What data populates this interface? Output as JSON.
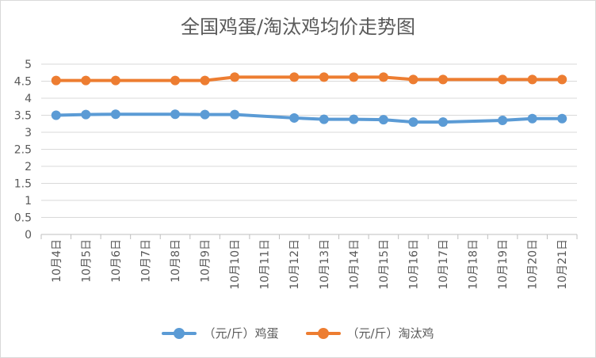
{
  "chart_data": {
    "type": "line",
    "title": "全国鸡蛋/淘汰鸡均价走势图",
    "xlabel": "",
    "ylabel": "",
    "ylim": [
      0,
      5
    ],
    "yticks": [
      "0",
      "0.5",
      "1",
      "1.5",
      "2",
      "2.5",
      "3",
      "3.5",
      "4",
      "4.5",
      "5"
    ],
    "grid": true,
    "legend_position": "bottom",
    "categories": [
      "10月4日",
      "10月5日",
      "10月6日",
      "10月7日",
      "10月8日",
      "10月9日",
      "10月10日",
      "10月11日",
      "10月12日",
      "10月13日",
      "10月14日",
      "10月15日",
      "10月16日",
      "10月17日",
      "10月18日",
      "10月19日",
      "10月20日",
      "10月21日"
    ],
    "series": [
      {
        "name": "（元/斤）鸡蛋",
        "color": "#5b9bd5",
        "values": [
          3.5,
          3.52,
          3.53,
          null,
          3.53,
          3.52,
          3.52,
          null,
          3.42,
          3.38,
          3.38,
          3.37,
          3.3,
          3.3,
          null,
          3.35,
          3.4,
          3.4
        ]
      },
      {
        "name": "（元/斤）淘汰鸡",
        "color": "#ed7d31",
        "values": [
          4.52,
          4.52,
          4.52,
          null,
          4.52,
          4.52,
          4.62,
          null,
          4.62,
          4.62,
          4.62,
          4.62,
          4.55,
          4.55,
          null,
          4.55,
          4.55,
          4.55
        ]
      }
    ]
  }
}
